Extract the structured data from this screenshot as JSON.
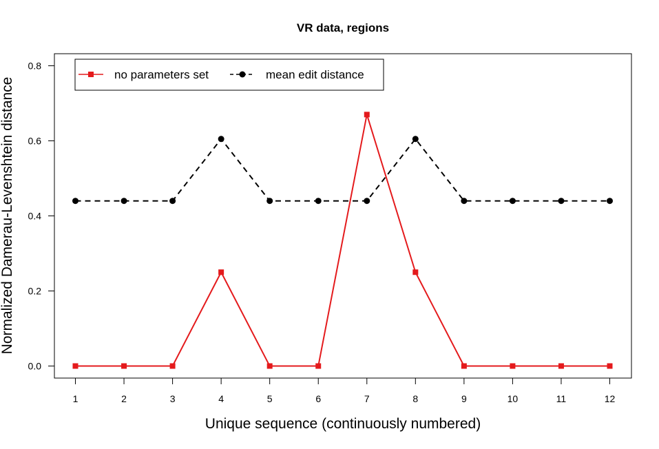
{
  "chart_data": {
    "type": "line",
    "title": "VR data, regions",
    "xlabel": "Unique sequence (continuously numbered)",
    "ylabel": "Normalized Damerau-Levenshtein distance",
    "x": [
      1,
      2,
      3,
      4,
      5,
      6,
      7,
      8,
      9,
      10,
      11,
      12
    ],
    "xlim": [
      1,
      12
    ],
    "ylim": [
      0,
      0.8
    ],
    "xticks": [
      1,
      2,
      3,
      4,
      5,
      6,
      7,
      8,
      9,
      10,
      11,
      12
    ],
    "yticks": [
      "0.0",
      "0.2",
      "0.4",
      "0.6",
      "0.8"
    ],
    "grid": false,
    "legend_position": "top-left",
    "series": [
      {
        "name": "no parameters set",
        "color": "#e41a1c",
        "line_style": "solid",
        "marker": "square",
        "values": [
          0,
          0,
          0,
          0.25,
          0,
          0,
          0.67,
          0.25,
          0,
          0,
          0,
          0
        ]
      },
      {
        "name": "mean edit distance",
        "color": "#000000",
        "line_style": "dashed",
        "marker": "circle",
        "values": [
          0.44,
          0.44,
          0.44,
          0.605,
          0.44,
          0.44,
          0.44,
          0.605,
          0.44,
          0.44,
          0.44,
          0.44
        ]
      }
    ]
  }
}
